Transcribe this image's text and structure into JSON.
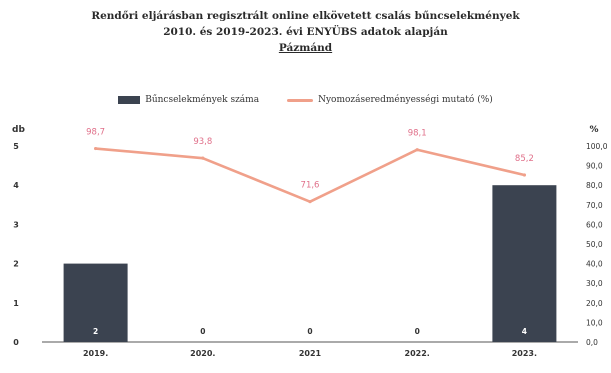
{
  "header": {
    "line1": "Rendőri eljárásban regisztrált online elkövetett csalás bűncselekmények",
    "line2": "2010. és 2019-2023. évi ENYÜBS adatok alapján",
    "line3": "Pázmánd"
  },
  "chart_data": {
    "type": "bar+line",
    "categories": [
      "2019.",
      "2020.",
      "2021",
      "2022.",
      "2023."
    ],
    "series": [
      {
        "name": "Bűncselekmények száma",
        "type": "bar",
        "axis": "left",
        "values": [
          2,
          0,
          0,
          0,
          4
        ],
        "value_labels": [
          "2",
          "0",
          "0",
          "0",
          "4"
        ],
        "color": "#3b4350"
      },
      {
        "name": "Nyomozáseredményességi mutató (%)",
        "type": "line",
        "axis": "right",
        "values": [
          98.7,
          93.8,
          71.6,
          98.1,
          85.2
        ],
        "value_labels": [
          "98,7",
          "93,8",
          "71,6",
          "98,1",
          "85,2"
        ],
        "color": "#f0a08a"
      }
    ],
    "y_left": {
      "label": "db",
      "min": 0,
      "max": 5,
      "ticks": [
        "0",
        "1",
        "2",
        "3",
        "4",
        "5"
      ]
    },
    "y_right": {
      "label": "%",
      "min": 0,
      "max": 100,
      "ticks": [
        "0,0",
        "10,0",
        "20,0",
        "30,0",
        "40,0",
        "50,0",
        "60,0",
        "70,0",
        "80,0",
        "90,0",
        "100,0"
      ]
    },
    "legend_position": "top",
    "grid": false
  }
}
